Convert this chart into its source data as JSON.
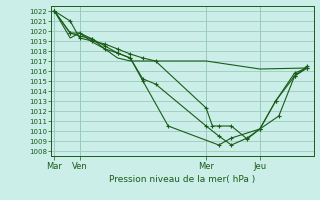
{
  "background_color": "#cceee8",
  "grid_color": "#99ccbb",
  "line_color": "#1a5c1a",
  "title": "Pression niveau de la mer( hPa )",
  "ylim": [
    1007.5,
    1022.5
  ],
  "yticks": [
    1008,
    1009,
    1010,
    1011,
    1012,
    1013,
    1014,
    1015,
    1016,
    1017,
    1018,
    1019,
    1020,
    1021,
    1022
  ],
  "xtick_labels": [
    "Mar",
    "Ven",
    "Mer",
    "Jeu"
  ],
  "xtick_positions": [
    0.0,
    0.8,
    4.8,
    6.5
  ],
  "xlim": [
    -0.1,
    8.2
  ],
  "series": [
    {
      "x": [
        0.0,
        0.5,
        0.8,
        1.2,
        1.6,
        2.0,
        2.4,
        2.8,
        3.2,
        4.8,
        5.0,
        5.2,
        5.6,
        6.1,
        6.5,
        7.1,
        7.6,
        8.0
      ],
      "y": [
        1022,
        1021.0,
        1019.3,
        1019.0,
        1018.7,
        1018.2,
        1017.7,
        1017.3,
        1017.0,
        1012.3,
        1010.5,
        1010.5,
        1010.5,
        1009.2,
        1010.2,
        1011.5,
        1015.5,
        1016.3
      ],
      "has_markers": true
    },
    {
      "x": [
        0.0,
        0.5,
        0.8,
        1.2,
        1.6,
        2.0,
        2.4,
        2.8,
        3.6,
        5.2,
        5.6,
        6.5,
        7.0,
        7.6,
        8.0
      ],
      "y": [
        1022,
        1019.8,
        1019.8,
        1019.2,
        1018.2,
        1017.8,
        1017.3,
        1015.0,
        1010.5,
        1008.6,
        1009.3,
        1010.2,
        1013.0,
        1015.8,
        1016.3
      ],
      "has_markers": true
    },
    {
      "x": [
        0.0,
        0.5,
        0.8,
        1.2,
        1.6,
        2.0,
        2.4,
        4.8,
        6.5,
        8.0
      ],
      "y": [
        1022,
        1019.3,
        1019.8,
        1018.9,
        1018.2,
        1017.3,
        1017.0,
        1017.0,
        1016.2,
        1016.3
      ],
      "has_markers": false
    },
    {
      "x": [
        0.0,
        0.5,
        0.8,
        1.2,
        1.6,
        2.0,
        2.4,
        2.8,
        3.2,
        4.8,
        5.2,
        5.6,
        6.1,
        6.5,
        7.0,
        7.6,
        8.0
      ],
      "y": [
        1022,
        1019.8,
        1019.5,
        1019.2,
        1018.5,
        1017.8,
        1017.3,
        1015.2,
        1014.7,
        1010.5,
        1009.5,
        1008.6,
        1009.3,
        1010.2,
        1013.0,
        1015.5,
        1016.5
      ],
      "has_markers": true
    }
  ]
}
